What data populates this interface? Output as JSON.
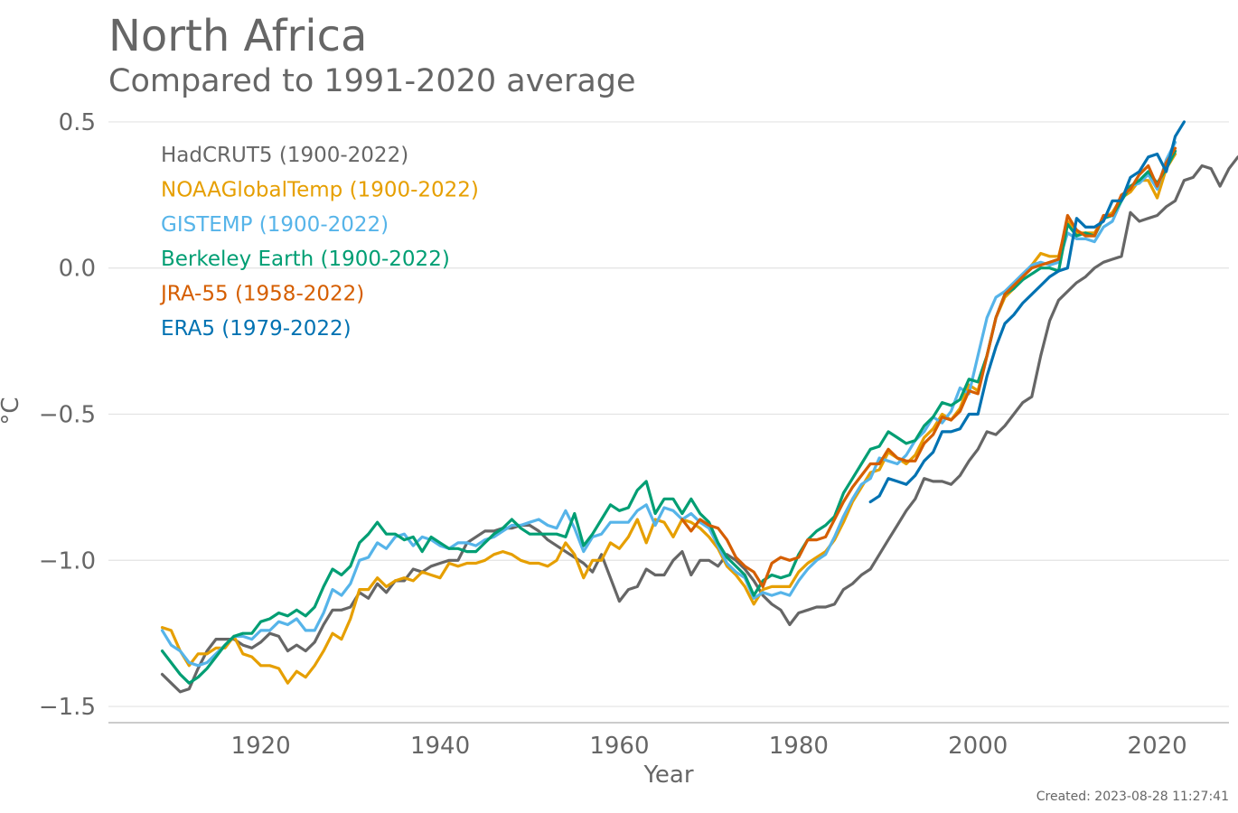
{
  "header": {
    "title": "North Africa",
    "subtitle": "Compared to 1991-2020 average"
  },
  "footer": {
    "created": "Created: 2023-08-28 11:27:41"
  },
  "chart_data": {
    "type": "line",
    "title": "North Africa",
    "subtitle": "Compared to 1991-2020 average",
    "xlabel": "Year",
    "ylabel": "°C",
    "xlim": [
      1903,
      2028
    ],
    "ylim": [
      -1.54,
      0.54
    ],
    "xticks": [
      1920,
      1940,
      1960,
      1980,
      2000,
      2020
    ],
    "yticks": [
      0.5,
      0.0,
      -0.5,
      -1.0,
      -1.5
    ],
    "ytick_labels": [
      "0.5",
      "0.0",
      "−0.5",
      "−1.0",
      "−1.5"
    ],
    "grid": "horizontal",
    "legend_position": "top-left",
    "series": [
      {
        "name": "HadCRUT5 (1900-2022)",
        "color": "#666666",
        "start": 1909,
        "values": [
          -1.39,
          -1.42,
          -1.45,
          -1.44,
          -1.37,
          -1.31,
          -1.27,
          -1.27,
          -1.27,
          -1.29,
          -1.3,
          -1.28,
          -1.25,
          -1.26,
          -1.31,
          -1.29,
          -1.31,
          -1.28,
          -1.22,
          -1.17,
          -1.17,
          -1.16,
          -1.11,
          -1.13,
          -1.08,
          -1.11,
          -1.07,
          -1.07,
          -1.03,
          -1.04,
          -1.02,
          -1.01,
          -1.0,
          -1.0,
          -0.94,
          -0.92,
          -0.9,
          -0.9,
          -0.89,
          -0.89,
          -0.88,
          -0.88,
          -0.9,
          -0.93,
          -0.95,
          -0.97,
          -0.99,
          -1.01,
          -1.04,
          -0.98,
          -1.06,
          -1.14,
          -1.1,
          -1.09,
          -1.03,
          -1.05,
          -1.05,
          -1.0,
          -0.97,
          -1.05,
          -1.0,
          -1.0,
          -1.02,
          -0.98,
          -1.0,
          -1.03,
          -1.07,
          -1.12,
          -1.15,
          -1.17,
          -1.22,
          -1.18,
          -1.17,
          -1.16,
          -1.16,
          -1.15,
          -1.1,
          -1.08,
          -1.05,
          -1.03,
          -0.98,
          -0.93,
          -0.88,
          -0.83,
          -0.79,
          -0.72,
          -0.73,
          -0.73,
          -0.74,
          -0.71,
          -0.66,
          -0.62,
          -0.56,
          -0.57,
          -0.54,
          -0.5,
          -0.46,
          -0.44,
          -0.3,
          -0.18,
          -0.11,
          -0.08,
          -0.05,
          -0.03,
          0.0,
          0.02,
          0.03,
          0.04,
          0.19,
          0.16,
          0.17,
          0.18,
          0.21,
          0.23,
          0.3,
          0.31,
          0.35,
          0.34,
          0.28,
          0.34,
          0.38
        ]
      },
      {
        "name": "NOAAGlobalTemp (1900-2022)",
        "color": "#E69F00",
        "start": 1909,
        "values": [
          -1.23,
          -1.24,
          -1.31,
          -1.36,
          -1.32,
          -1.32,
          -1.3,
          -1.3,
          -1.26,
          -1.32,
          -1.33,
          -1.36,
          -1.36,
          -1.37,
          -1.42,
          -1.38,
          -1.4,
          -1.36,
          -1.31,
          -1.25,
          -1.27,
          -1.2,
          -1.1,
          -1.1,
          -1.06,
          -1.09,
          -1.07,
          -1.06,
          -1.07,
          -1.04,
          -1.05,
          -1.06,
          -1.01,
          -1.02,
          -1.01,
          -1.01,
          -1.0,
          -0.98,
          -0.97,
          -0.98,
          -1.0,
          -1.01,
          -1.01,
          -1.02,
          -1.0,
          -0.94,
          -0.98,
          -1.06,
          -1.0,
          -1.0,
          -0.94,
          -0.96,
          -0.92,
          -0.86,
          -0.94,
          -0.86,
          -0.87,
          -0.92,
          -0.86,
          -0.87,
          -0.89,
          -0.92,
          -0.96,
          -1.02,
          -1.05,
          -1.09,
          -1.15,
          -1.1,
          -1.09,
          -1.09,
          -1.09,
          -1.04,
          -1.01,
          -0.99,
          -0.97,
          -0.93,
          -0.87,
          -0.8,
          -0.75,
          -0.7,
          -0.69,
          -0.63,
          -0.65,
          -0.67,
          -0.64,
          -0.58,
          -0.55,
          -0.5,
          -0.52,
          -0.48,
          -0.4,
          -0.42,
          -0.3,
          -0.17,
          -0.1,
          -0.07,
          -0.03,
          0.01,
          0.05,
          0.04,
          0.04,
          0.16,
          0.12,
          0.12,
          0.12,
          0.17,
          0.19,
          0.24,
          0.26,
          0.3,
          0.3,
          0.24,
          0.34,
          0.39
        ]
      },
      {
        "name": "GISTEMP (1900-2022)",
        "color": "#56B4E9",
        "start": 1909,
        "values": [
          -1.24,
          -1.29,
          -1.31,
          -1.35,
          -1.36,
          -1.35,
          -1.32,
          -1.29,
          -1.26,
          -1.26,
          -1.27,
          -1.24,
          -1.24,
          -1.21,
          -1.22,
          -1.2,
          -1.24,
          -1.24,
          -1.18,
          -1.1,
          -1.12,
          -1.08,
          -1.0,
          -0.99,
          -0.94,
          -0.96,
          -0.92,
          -0.91,
          -0.95,
          -0.92,
          -0.93,
          -0.95,
          -0.96,
          -0.94,
          -0.94,
          -0.95,
          -0.93,
          -0.92,
          -0.9,
          -0.88,
          -0.88,
          -0.87,
          -0.86,
          -0.88,
          -0.89,
          -0.83,
          -0.89,
          -0.97,
          -0.92,
          -0.91,
          -0.87,
          -0.87,
          -0.87,
          -0.83,
          -0.81,
          -0.88,
          -0.82,
          -0.83,
          -0.86,
          -0.84,
          -0.87,
          -0.89,
          -0.95,
          -1.01,
          -1.04,
          -1.06,
          -1.13,
          -1.11,
          -1.12,
          -1.11,
          -1.12,
          -1.07,
          -1.03,
          -1.0,
          -0.98,
          -0.92,
          -0.85,
          -0.79,
          -0.74,
          -0.72,
          -0.65,
          -0.66,
          -0.67,
          -0.64,
          -0.59,
          -0.56,
          -0.51,
          -0.53,
          -0.49,
          -0.41,
          -0.43,
          -0.3,
          -0.17,
          -0.1,
          -0.08,
          -0.05,
          -0.02,
          0.01,
          0.02,
          0.01,
          0.02,
          0.12,
          0.1,
          0.1,
          0.09,
          0.14,
          0.16,
          0.23,
          0.28,
          0.29,
          0.32,
          0.27,
          0.37,
          0.43
        ]
      },
      {
        "name": "Berkeley Earth (1900-2022)",
        "color": "#009E73",
        "start": 1909,
        "values": [
          -1.31,
          -1.35,
          -1.39,
          -1.42,
          -1.4,
          -1.37,
          -1.33,
          -1.29,
          -1.26,
          -1.25,
          -1.25,
          -1.21,
          -1.2,
          -1.18,
          -1.19,
          -1.17,
          -1.19,
          -1.16,
          -1.09,
          -1.03,
          -1.05,
          -1.02,
          -0.94,
          -0.91,
          -0.87,
          -0.91,
          -0.91,
          -0.93,
          -0.92,
          -0.97,
          -0.92,
          -0.94,
          -0.96,
          -0.96,
          -0.97,
          -0.97,
          -0.94,
          -0.91,
          -0.89,
          -0.86,
          -0.89,
          -0.91,
          -0.91,
          -0.91,
          -0.91,
          -0.92,
          -0.84,
          -0.95,
          -0.91,
          -0.86,
          -0.81,
          -0.83,
          -0.82,
          -0.76,
          -0.73,
          -0.84,
          -0.79,
          -0.79,
          -0.84,
          -0.79,
          -0.84,
          -0.87,
          -0.94,
          -0.99,
          -1.02,
          -1.05,
          -1.12,
          -1.07,
          -1.05,
          -1.06,
          -1.05,
          -0.98,
          -0.93,
          -0.9,
          -0.88,
          -0.85,
          -0.77,
          -0.72,
          -0.67,
          -0.62,
          -0.61,
          -0.56,
          -0.58,
          -0.6,
          -0.59,
          -0.54,
          -0.51,
          -0.46,
          -0.47,
          -0.45,
          -0.38,
          -0.39,
          -0.3,
          -0.17,
          -0.09,
          -0.07,
          -0.04,
          -0.02,
          0.0,
          0.0,
          -0.01,
          0.15,
          0.11,
          0.12,
          0.11,
          0.17,
          0.18,
          0.23,
          0.28,
          0.3,
          0.33,
          0.29,
          0.34,
          0.4
        ]
      },
      {
        "name": "JRA-55 (1958-2022)",
        "color": "#D55E00",
        "start": 1967,
        "values": [
          -0.86,
          -0.9,
          -0.86,
          -0.88,
          -0.89,
          -0.93,
          -0.99,
          -1.02,
          -1.04,
          -1.09,
          -1.01,
          -0.99,
          -1.0,
          -0.99,
          -0.93,
          -0.93,
          -0.92,
          -0.86,
          -0.8,
          -0.75,
          -0.71,
          -0.67,
          -0.67,
          -0.62,
          -0.65,
          -0.66,
          -0.66,
          -0.6,
          -0.57,
          -0.51,
          -0.52,
          -0.49,
          -0.42,
          -0.43,
          -0.3,
          -0.17,
          -0.09,
          -0.06,
          -0.03,
          0.0,
          0.01,
          0.02,
          0.03,
          0.18,
          0.13,
          0.11,
          0.11,
          0.18,
          0.18,
          0.25,
          0.27,
          0.32,
          0.35,
          0.28,
          0.36,
          0.41
        ]
      },
      {
        "name": "ERA5 (1979-2022)",
        "color": "#0072B2",
        "start": 1988,
        "values": [
          -0.8,
          -0.78,
          -0.72,
          -0.73,
          -0.74,
          -0.71,
          -0.66,
          -0.63,
          -0.56,
          -0.56,
          -0.55,
          -0.5,
          -0.5,
          -0.37,
          -0.27,
          -0.19,
          -0.16,
          -0.12,
          -0.09,
          -0.06,
          -0.03,
          -0.01,
          0.0,
          0.17,
          0.14,
          0.14,
          0.16,
          0.23,
          0.23,
          0.31,
          0.33,
          0.38,
          0.39,
          0.33,
          0.45,
          0.5
        ]
      }
    ]
  }
}
